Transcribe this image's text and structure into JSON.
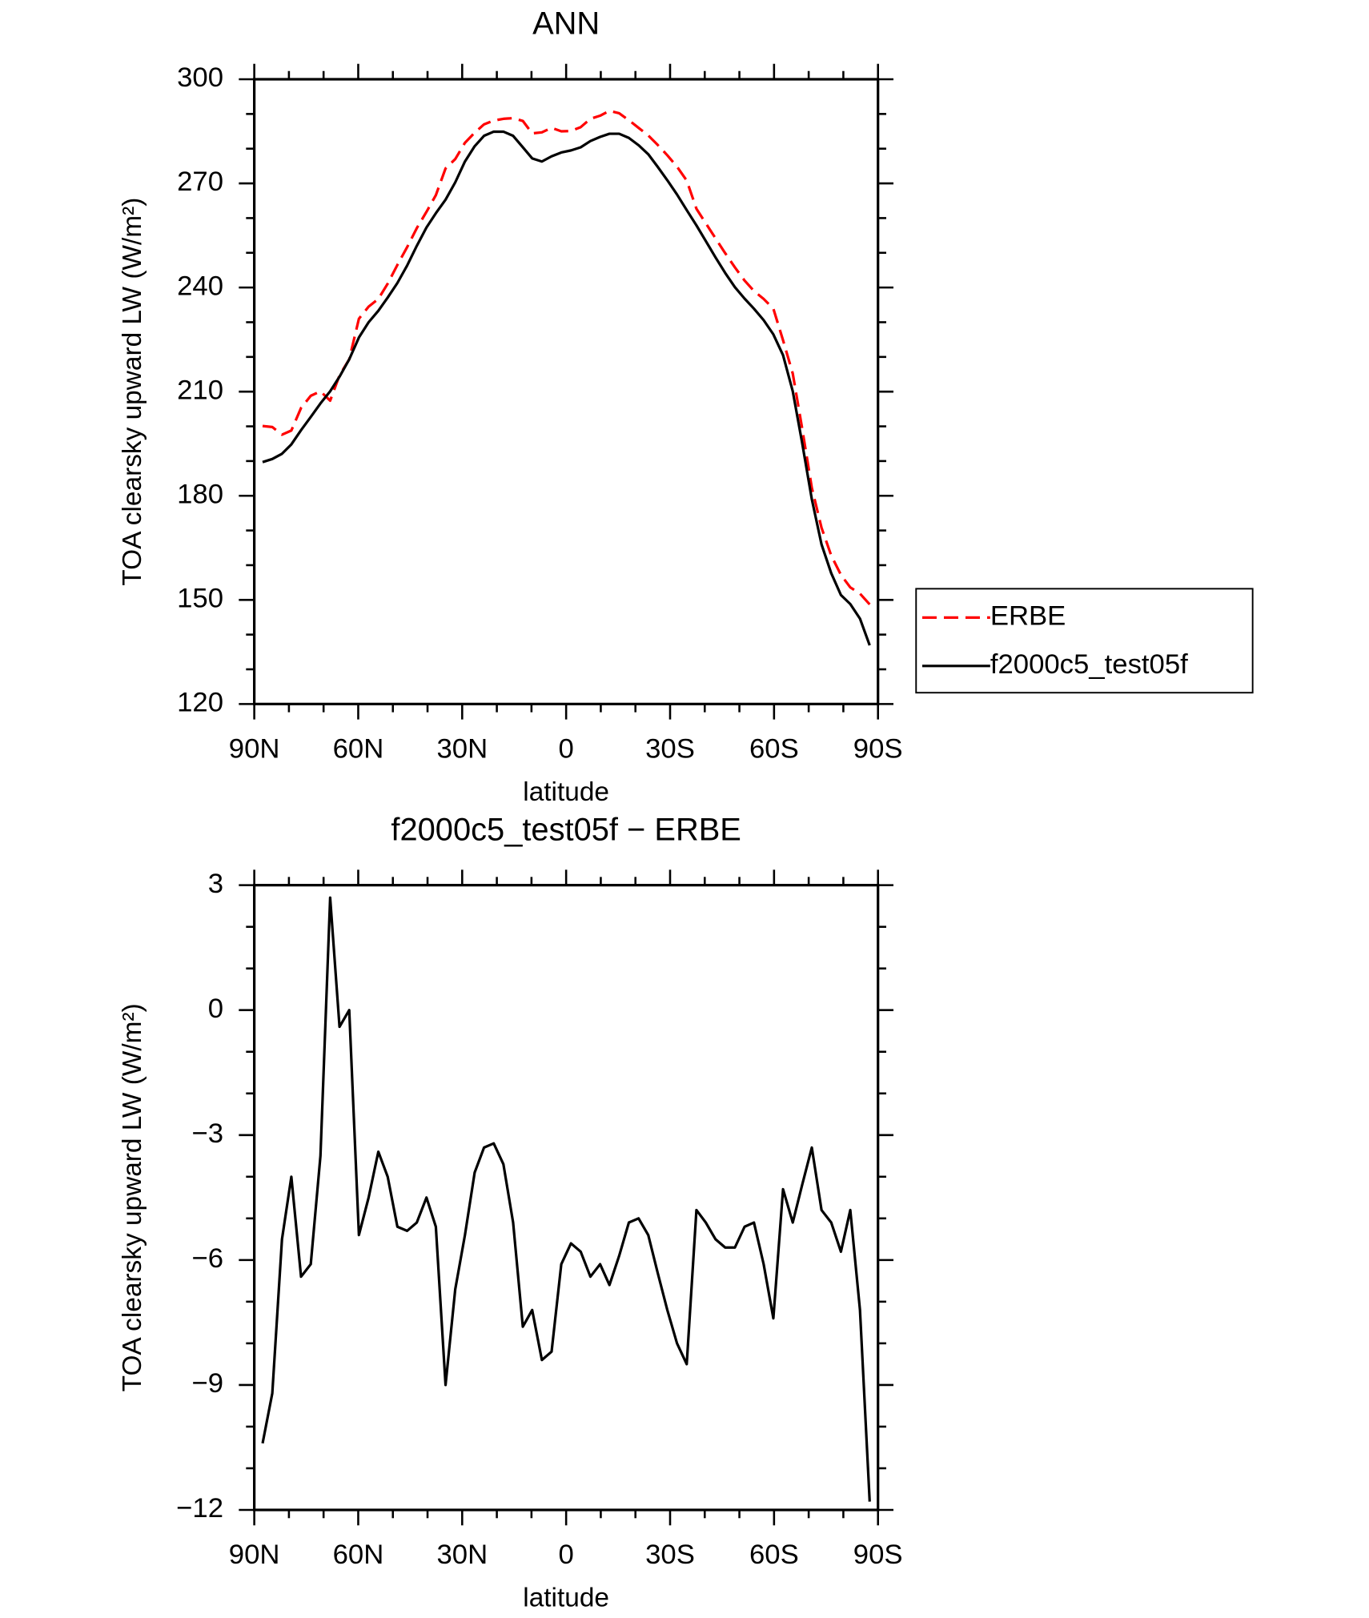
{
  "chart_data": [
    {
      "type": "line",
      "title": "ANN",
      "xlabel": "latitude",
      "ylabel": "TOA clearsky upward LW (W/m²)",
      "x": [
        87.6,
        84.8,
        82.0,
        79.3,
        76.5,
        73.7,
        70.9,
        68.1,
        65.4,
        62.6,
        59.8,
        57.0,
        54.2,
        51.5,
        48.7,
        45.9,
        43.1,
        40.3,
        37.6,
        34.8,
        32.0,
        29.2,
        26.4,
        23.7,
        20.9,
        18.1,
        15.3,
        12.5,
        9.8,
        7.0,
        4.2,
        1.4,
        -1.4,
        -4.2,
        -7.0,
        -9.8,
        -12.5,
        -15.3,
        -18.1,
        -20.9,
        -23.7,
        -26.4,
        -29.2,
        -32.0,
        -34.8,
        -37.6,
        -40.3,
        -43.1,
        -45.9,
        -48.7,
        -51.5,
        -54.2,
        -57.0,
        -59.8,
        -62.6,
        -65.4,
        -68.1,
        -70.9,
        -73.7,
        -76.5,
        -79.3,
        -82.0,
        -84.8,
        -87.6
      ],
      "xlim": [
        90,
        -90
      ],
      "xticks": [
        {
          "value": 90,
          "label": "90N"
        },
        {
          "value": 60,
          "label": "60N"
        },
        {
          "value": 30,
          "label": "30N"
        },
        0,
        {
          "value": -30,
          "label": "30S"
        },
        {
          "value": -60,
          "label": "60S"
        },
        {
          "value": -90,
          "label": "90S"
        }
      ],
      "xminorticks": [
        80,
        70,
        50,
        40,
        20,
        10,
        -10,
        -20,
        -40,
        -50,
        -70,
        -80
      ],
      "ylim": [
        120,
        300
      ],
      "yticks": [
        120,
        150,
        180,
        210,
        240,
        270,
        300
      ],
      "yminorticks": [
        130,
        140,
        160,
        170,
        190,
        200,
        220,
        230,
        250,
        260,
        280,
        290
      ],
      "legend": "right",
      "series": [
        {
          "name": "ERBE",
          "color": "#ff0000",
          "style": "dashed",
          "values": [
            200.1,
            199.8,
            197.6,
            198.8,
            205.3,
            208.8,
            210.1,
            207.4,
            214.7,
            219.3,
            231.0,
            234.5,
            236.7,
            241.1,
            246.5,
            251.6,
            257.1,
            261.8,
            266.6,
            274.3,
            277.0,
            281.7,
            284.6,
            287.0,
            288.1,
            288.6,
            288.8,
            288.0,
            284.4,
            284.7,
            286.0,
            285.0,
            285.1,
            286.2,
            288.6,
            289.5,
            290.9,
            290.2,
            288.2,
            286.0,
            283.8,
            281.1,
            278.1,
            274.8,
            270.8,
            262.7,
            258.5,
            254.2,
            249.9,
            245.8,
            242.0,
            239.0,
            236.7,
            233.9,
            224.8,
            215.2,
            199.5,
            182.3,
            170.8,
            162.8,
            157.2,
            153.6,
            151.8,
            148.7
          ]
        },
        {
          "name": "f2000c5_test05f",
          "color": "#000000",
          "style": "solid",
          "values": [
            189.7,
            190.6,
            192.1,
            194.8,
            198.9,
            202.7,
            206.6,
            210.1,
            214.3,
            219.3,
            225.6,
            230.0,
            233.3,
            237.1,
            241.3,
            246.3,
            252.0,
            257.3,
            261.4,
            265.3,
            270.3,
            276.3,
            280.7,
            283.7,
            284.9,
            284.9,
            283.7,
            280.4,
            277.2,
            276.3,
            277.8,
            278.9,
            279.5,
            280.4,
            282.2,
            283.4,
            284.3,
            284.3,
            283.1,
            281.0,
            278.4,
            274.8,
            270.9,
            266.8,
            262.3,
            257.9,
            253.4,
            248.7,
            244.2,
            240.1,
            236.8,
            233.9,
            230.6,
            226.5,
            220.5,
            210.1,
            195.3,
            179.0,
            166.0,
            157.7,
            151.4,
            148.8,
            144.6,
            136.9
          ]
        }
      ]
    },
    {
      "type": "line",
      "title": "f2000c5_test05f − ERBE",
      "xlabel": "latitude",
      "ylabel": "TOA clearsky upward LW (W/m²)",
      "x": [
        87.6,
        84.8,
        82.0,
        79.3,
        76.5,
        73.7,
        70.9,
        68.1,
        65.4,
        62.6,
        59.8,
        57.0,
        54.2,
        51.5,
        48.7,
        45.9,
        43.1,
        40.3,
        37.6,
        34.8,
        32.0,
        29.2,
        26.4,
        23.7,
        20.9,
        18.1,
        15.3,
        12.5,
        9.8,
        7.0,
        4.2,
        1.4,
        -1.4,
        -4.2,
        -7.0,
        -9.8,
        -12.5,
        -15.3,
        -18.1,
        -20.9,
        -23.7,
        -26.4,
        -29.2,
        -32.0,
        -34.8,
        -37.6,
        -40.3,
        -43.1,
        -45.9,
        -48.7,
        -51.5,
        -54.2,
        -57.0,
        -59.8,
        -62.6,
        -65.4,
        -68.1,
        -70.9,
        -73.7,
        -76.5,
        -79.3,
        -82.0,
        -84.8,
        -87.6
      ],
      "xlim": [
        90,
        -90
      ],
      "xticks": [
        {
          "value": 90,
          "label": "90N"
        },
        {
          "value": 60,
          "label": "60N"
        },
        {
          "value": 30,
          "label": "30N"
        },
        0,
        {
          "value": -30,
          "label": "30S"
        },
        {
          "value": -60,
          "label": "60S"
        },
        {
          "value": -90,
          "label": "90S"
        }
      ],
      "xminorticks": [
        80,
        70,
        50,
        40,
        20,
        10,
        -10,
        -20,
        -40,
        -50,
        -70,
        -80
      ],
      "ylim": [
        -12,
        3
      ],
      "yticks": [
        {
          "value": -12,
          "label": "−12"
        },
        {
          "value": -9,
          "label": "−9"
        },
        {
          "value": -6,
          "label": "−6"
        },
        {
          "value": -3,
          "label": "−3"
        },
        0,
        3
      ],
      "yminorticks": [
        -11,
        -10,
        -8,
        -7,
        -5,
        -4,
        -2,
        -1,
        1,
        2
      ],
      "color": "#000000",
      "values": [
        -10.4,
        -9.2,
        -5.5,
        -4.0,
        -6.4,
        -6.1,
        -3.5,
        2.7,
        -0.4,
        0.0,
        -5.4,
        -4.5,
        -3.4,
        -4.0,
        -5.2,
        -5.3,
        -5.1,
        -4.5,
        -5.2,
        -9.0,
        -6.7,
        -5.4,
        -3.9,
        -3.3,
        -3.2,
        -3.7,
        -5.1,
        -7.6,
        -7.2,
        -8.4,
        -8.2,
        -6.1,
        -5.6,
        -5.8,
        -6.4,
        -6.1,
        -6.6,
        -5.9,
        -5.1,
        -5.0,
        -5.4,
        -6.3,
        -7.2,
        -8.0,
        -8.5,
        -4.8,
        -5.1,
        -5.5,
        -5.7,
        -5.7,
        -5.2,
        -5.1,
        -6.1,
        -7.4,
        -4.3,
        -5.1,
        -4.2,
        -3.3,
        -4.8,
        -5.1,
        -5.8,
        -4.8,
        -7.2,
        -11.8
      ]
    }
  ]
}
